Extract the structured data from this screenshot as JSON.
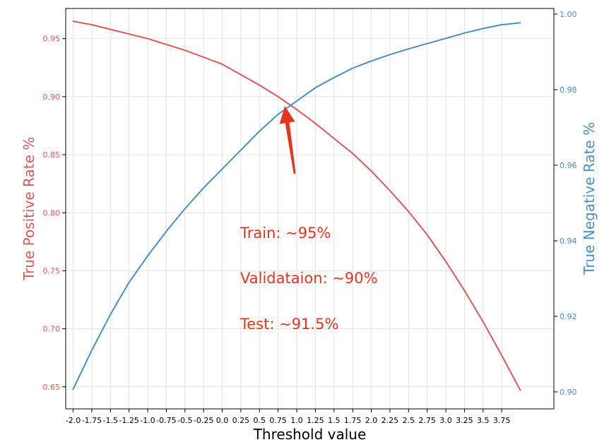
{
  "chart_data": {
    "type": "line",
    "title": "",
    "xlabel": "Threshold value",
    "ylabel": "True Positive Rate %",
    "y2label": "True Negative Rate %",
    "xlim": [
      -2.1,
      4.45
    ],
    "ylim": [
      0.631,
      0.976
    ],
    "y2lim": [
      0.8955,
      1.0015
    ],
    "grid": true,
    "legend": "none",
    "x_ticks": [
      {
        "v": -2.0,
        "label": "-2.0"
      },
      {
        "v": -1.75,
        "label": "-1.75"
      },
      {
        "v": -1.5,
        "label": "-1.5"
      },
      {
        "v": -1.25,
        "label": "-1.25"
      },
      {
        "v": -1.0,
        "label": "-1.0"
      },
      {
        "v": -0.75,
        "label": "-0.75"
      },
      {
        "v": -0.5,
        "label": "-0.5"
      },
      {
        "v": -0.25,
        "label": "-0.25"
      },
      {
        "v": 0.0,
        "label": "0.0"
      },
      {
        "v": 0.25,
        "label": "0.25"
      },
      {
        "v": 0.5,
        "label": "0.5"
      },
      {
        "v": 0.75,
        "label": "0.75"
      },
      {
        "v": 1.0,
        "label": "1.0"
      },
      {
        "v": 1.25,
        "label": "1.25"
      },
      {
        "v": 1.5,
        "label": "1.5"
      },
      {
        "v": 1.75,
        "label": "1.75"
      },
      {
        "v": 2.0,
        "label": "2.0"
      },
      {
        "v": 2.25,
        "label": "2.25"
      },
      {
        "v": 2.5,
        "label": "2.5"
      },
      {
        "v": 2.75,
        "label": "2.75"
      },
      {
        "v": 3.0,
        "label": "3.0"
      },
      {
        "v": 3.25,
        "label": "3.25"
      },
      {
        "v": 3.5,
        "label": "3.5"
      },
      {
        "v": 3.75,
        "label": "3.75"
      }
    ],
    "y_ticks": [
      {
        "v": 0.65,
        "label": "0.65"
      },
      {
        "v": 0.7,
        "label": "0.70"
      },
      {
        "v": 0.75,
        "label": "0.75"
      },
      {
        "v": 0.8,
        "label": "0.80"
      },
      {
        "v": 0.85,
        "label": "0.85"
      },
      {
        "v": 0.9,
        "label": "0.90"
      },
      {
        "v": 0.95,
        "label": "0.95"
      }
    ],
    "y2_ticks": [
      {
        "v": 0.9,
        "label": "0.90"
      },
      {
        "v": 0.92,
        "label": "0.92"
      },
      {
        "v": 0.94,
        "label": "0.94"
      },
      {
        "v": 0.96,
        "label": "0.96"
      },
      {
        "v": 0.98,
        "label": "0.98"
      },
      {
        "v": 1.0,
        "label": "1.00"
      }
    ],
    "series": [
      {
        "axis": "left",
        "color": "#e0575b",
        "x": [
          -2.0,
          -1.75,
          -1.5,
          -1.25,
          -1.0,
          -0.75,
          -0.5,
          -0.25,
          0.0,
          0.25,
          0.5,
          0.75,
          1.0,
          1.25,
          1.5,
          1.75,
          2.0,
          2.25,
          2.5,
          2.75,
          3.0,
          3.25,
          3.5,
          3.75,
          4.0
        ],
        "values": [
          0.965,
          0.962,
          0.958,
          0.954,
          0.95,
          0.945,
          0.94,
          0.934,
          0.928,
          0.919,
          0.91,
          0.9,
          0.889,
          0.877,
          0.864,
          0.851,
          0.836,
          0.819,
          0.801,
          0.781,
          0.758,
          0.733,
          0.706,
          0.677,
          0.647
        ]
      },
      {
        "axis": "right",
        "color": "#4b8fc0",
        "x": [
          -2.0,
          -1.75,
          -1.5,
          -1.25,
          -1.0,
          -0.75,
          -0.5,
          -0.25,
          0.0,
          0.25,
          0.5,
          0.75,
          1.0,
          1.25,
          1.5,
          1.75,
          2.0,
          2.25,
          2.5,
          2.75,
          3.0,
          3.25,
          3.5,
          3.75,
          4.0
        ],
        "values": [
          0.9007,
          0.911,
          0.9205,
          0.929,
          0.936,
          0.9425,
          0.9485,
          0.954,
          0.959,
          0.964,
          0.969,
          0.9735,
          0.977,
          0.9805,
          0.9832,
          0.9857,
          0.9876,
          0.9893,
          0.9908,
          0.9922,
          0.9936,
          0.995,
          0.9962,
          0.9972,
          0.9977
        ]
      }
    ],
    "annotations": [
      {
        "text": "Train: ~95%",
        "color": "#e8341d"
      },
      {
        "text": "Validataion: ~90%",
        "color": "#e8341d"
      },
      {
        "text": "Test: ~91.5%",
        "color": "#e8341d"
      }
    ],
    "arrow": {
      "color": "#e8341d",
      "target_x": 0.84,
      "target_y": 0.895
    }
  }
}
